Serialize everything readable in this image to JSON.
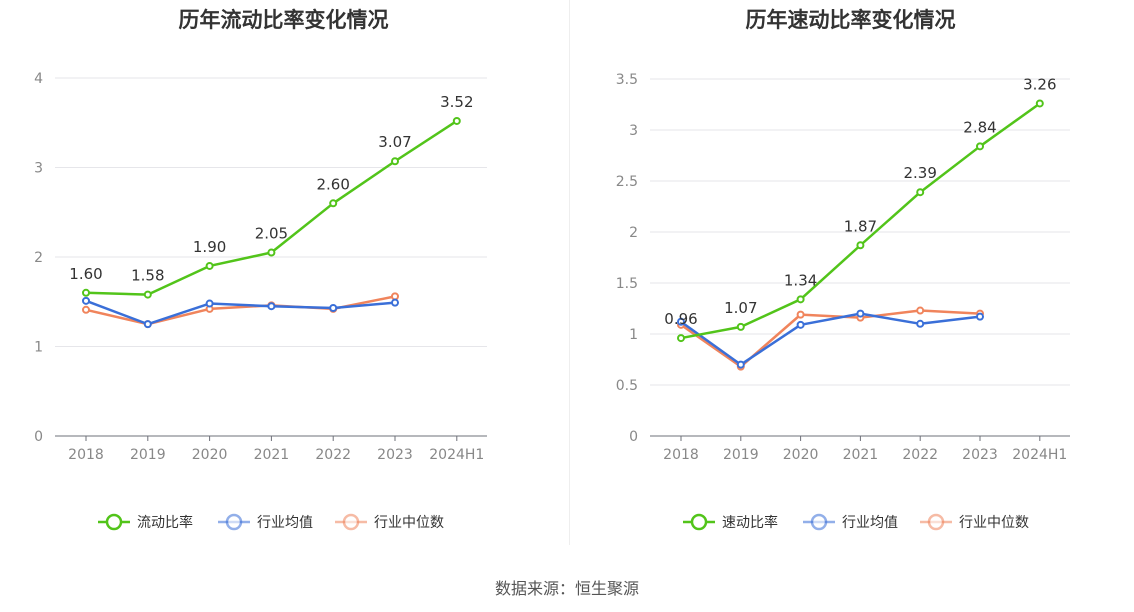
{
  "source": "数据来源：恒生聚源",
  "chart_data": [
    {
      "type": "line",
      "title": "历年流动比率变化情况",
      "categories": [
        "2018",
        "2019",
        "2020",
        "2021",
        "2022",
        "2023",
        "2024H1"
      ],
      "ylim": [
        0,
        4
      ],
      "yticks": [
        0,
        1,
        2,
        3,
        4
      ],
      "grid": true,
      "legend": "bottom",
      "series": [
        {
          "name": "流动比率",
          "color": "#52c41a",
          "values": [
            1.6,
            1.58,
            1.9,
            2.05,
            2.6,
            3.07,
            3.52
          ],
          "labels": [
            "1.60",
            "1.58",
            "1.90",
            "2.05",
            "2.60",
            "3.07",
            "3.52"
          ]
        },
        {
          "name": "行业均值",
          "color": "#3a6fd8",
          "values": [
            1.51,
            1.25,
            1.48,
            1.45,
            1.43,
            1.49,
            null
          ]
        },
        {
          "name": "行业中位数",
          "color": "#f0845c",
          "values": [
            1.41,
            1.25,
            1.42,
            1.46,
            1.42,
            1.56,
            null
          ]
        }
      ]
    },
    {
      "type": "line",
      "title": "历年速动比率变化情况",
      "categories": [
        "2018",
        "2019",
        "2020",
        "2021",
        "2022",
        "2023",
        "2024H1"
      ],
      "ylim": [
        0,
        3.5
      ],
      "yticks": [
        0,
        0.5,
        1,
        1.5,
        2,
        2.5,
        3,
        3.5
      ],
      "grid": true,
      "legend": "bottom",
      "series": [
        {
          "name": "速动比率",
          "color": "#52c41a",
          "values": [
            0.96,
            1.07,
            1.34,
            1.87,
            2.39,
            2.84,
            3.26
          ],
          "labels": [
            "0.96",
            "1.07",
            "1.34",
            "1.87",
            "2.39",
            "2.84",
            "3.26"
          ]
        },
        {
          "name": "行业均值",
          "color": "#3a6fd8",
          "values": [
            1.12,
            0.7,
            1.09,
            1.2,
            1.1,
            1.17,
            null
          ]
        },
        {
          "name": "行业中位数",
          "color": "#f0845c",
          "values": [
            1.09,
            0.68,
            1.19,
            1.16,
            1.23,
            1.2,
            null
          ]
        }
      ]
    }
  ]
}
